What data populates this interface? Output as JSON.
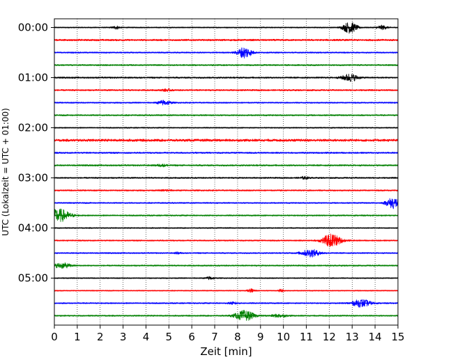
{
  "chart_data": {
    "type": "line",
    "title": "",
    "xlabel": "Zeit  [min]",
    "ylabel": "UTC (Lokalzeit = UTC + 01:00)",
    "xlim": [
      0,
      15
    ],
    "x_ticks": [
      "0",
      "1",
      "2",
      "3",
      "4",
      "5",
      "6",
      "7",
      "8",
      "9",
      "10",
      "11",
      "12",
      "13",
      "14",
      "15"
    ],
    "y_tick_labels": [
      "00:00",
      "01:00",
      "02:00",
      "03:00",
      "04:00",
      "05:00"
    ],
    "grid": {
      "x": true,
      "style": "dotted"
    },
    "trace_count": 24,
    "trace_colors": [
      "#000000",
      "#ff0000",
      "#0000ff",
      "#008000"
    ],
    "traces": [
      {
        "label": "00:00",
        "noise": 0.1,
        "events": [
          {
            "t": 2.7,
            "a": 0.28,
            "w": 0.25
          },
          {
            "t": 12.9,
            "a": 1.0,
            "w": 0.45
          },
          {
            "t": 14.3,
            "a": 0.35,
            "w": 0.35
          }
        ]
      },
      {
        "label": "00:15",
        "noise": 0.16,
        "events": []
      },
      {
        "label": "00:30",
        "noise": 0.12,
        "events": [
          {
            "t": 8.3,
            "a": 1.0,
            "w": 0.45
          }
        ]
      },
      {
        "label": "00:45",
        "noise": 0.13,
        "events": []
      },
      {
        "label": "01:00",
        "noise": 0.14,
        "events": [
          {
            "t": 12.9,
            "a": 0.65,
            "w": 0.5
          }
        ]
      },
      {
        "label": "01:15",
        "noise": 0.14,
        "events": [
          {
            "t": 4.9,
            "a": 0.18,
            "w": 0.3
          }
        ]
      },
      {
        "label": "01:30",
        "noise": 0.12,
        "events": [
          {
            "t": 4.8,
            "a": 0.42,
            "w": 0.4
          }
        ]
      },
      {
        "label": "01:45",
        "noise": 0.13,
        "events": []
      },
      {
        "label": "02:00",
        "noise": 0.1,
        "events": []
      },
      {
        "label": "02:15",
        "noise": 0.22,
        "events": []
      },
      {
        "label": "02:30",
        "noise": 0.14,
        "events": []
      },
      {
        "label": "02:45",
        "noise": 0.14,
        "events": [
          {
            "t": 4.7,
            "a": 0.18,
            "w": 0.4
          }
        ]
      },
      {
        "label": "03:00",
        "noise": 0.13,
        "events": [
          {
            "t": 10.9,
            "a": 0.2,
            "w": 0.3
          }
        ]
      },
      {
        "label": "03:15",
        "noise": 0.13,
        "events": [
          {
            "t": 4.9,
            "a": 0.15,
            "w": 0.3
          }
        ]
      },
      {
        "label": "03:30",
        "noise": 0.12,
        "events": [
          {
            "t": 14.8,
            "a": 1.0,
            "w": 0.45
          }
        ]
      },
      {
        "label": "03:45",
        "noise": 0.12,
        "events": [
          {
            "t": 0.2,
            "a": 1.15,
            "w": 0.7
          }
        ]
      },
      {
        "label": "04:00",
        "noise": 0.1,
        "events": []
      },
      {
        "label": "04:15",
        "noise": 0.12,
        "events": [
          {
            "t": 12.1,
            "a": 1.15,
            "w": 0.6
          }
        ]
      },
      {
        "label": "04:30",
        "noise": 0.12,
        "events": [
          {
            "t": 11.2,
            "a": 0.65,
            "w": 0.6
          },
          {
            "t": 5.4,
            "a": 0.15,
            "w": 0.2
          }
        ]
      },
      {
        "label": "04:45",
        "noise": 0.12,
        "events": [
          {
            "t": 0.35,
            "a": 0.45,
            "w": 0.55
          }
        ]
      },
      {
        "label": "05:00",
        "noise": 0.1,
        "events": [
          {
            "t": 6.8,
            "a": 0.28,
            "w": 0.25
          }
        ]
      },
      {
        "label": "05:15",
        "noise": 0.09,
        "events": [
          {
            "t": 8.6,
            "a": 0.3,
            "w": 0.25
          },
          {
            "t": 9.9,
            "a": 0.3,
            "w": 0.15
          }
        ]
      },
      {
        "label": "05:30",
        "noise": 0.12,
        "events": [
          {
            "t": 13.4,
            "a": 0.65,
            "w": 0.6
          },
          {
            "t": 7.8,
            "a": 0.18,
            "w": 0.3
          }
        ]
      },
      {
        "label": "05:45",
        "noise": 0.12,
        "events": [
          {
            "t": 8.3,
            "a": 0.9,
            "w": 0.6
          },
          {
            "t": 9.8,
            "a": 0.25,
            "w": 0.5
          }
        ]
      }
    ]
  }
}
